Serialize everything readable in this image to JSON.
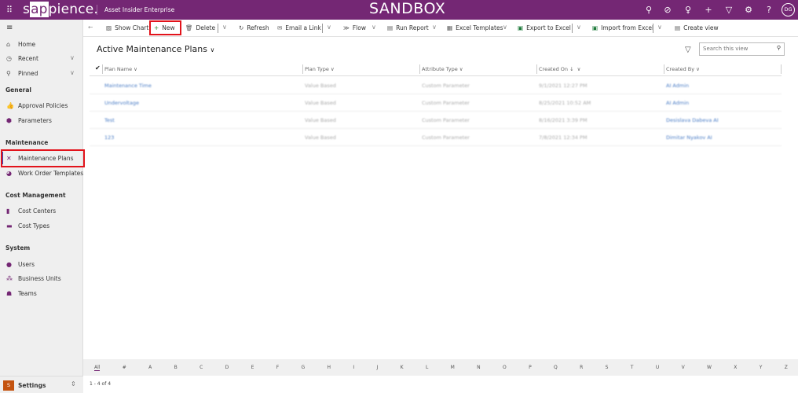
{
  "header": {
    "logo": "sappience.",
    "logo_pre": "s",
    "logo_mid": "ap",
    "logo_post": "pience.",
    "app_name": "Asset Insider Enterprise",
    "environment": "SANDBOX",
    "avatar": "DG",
    "color": "#742774"
  },
  "toolbar": {
    "show_chart": "Show Chart",
    "new": "New",
    "delete": "Delete",
    "refresh": "Refresh",
    "email_link": "Email a Link",
    "flow": "Flow",
    "run_report": "Run Report",
    "excel_templates": "Excel Templates",
    "export_excel": "Export to Excel",
    "import_excel": "Import from Excel",
    "create_view": "Create view"
  },
  "sidebar": {
    "home": "Home",
    "recent": "Recent",
    "pinned": "Pinned",
    "groups": [
      {
        "title": "General",
        "items": [
          "Approval Policies",
          "Parameters"
        ]
      },
      {
        "title": "Maintenance",
        "items": [
          "Maintenance Plans",
          "Work Order Templates"
        ]
      },
      {
        "title": "Cost Management",
        "items": [
          "Cost Centers",
          "Cost Types"
        ]
      },
      {
        "title": "System",
        "items": [
          "Users",
          "Business Units",
          "Teams"
        ]
      }
    ],
    "selected": "Maintenance Plans",
    "settings": "Settings",
    "settings_initial": "S"
  },
  "view": {
    "title": "Active Maintenance Plans",
    "search_placeholder": "Search this view"
  },
  "grid": {
    "columns": [
      "Plan Name",
      "Plan Type",
      "Attribute Type",
      "Created On",
      "Created By"
    ],
    "rows": [
      [
        "Maintenance Time",
        "Value Based",
        "Custom Parameter",
        "9/1/2021 12:27 PM",
        "AI Admin"
      ],
      [
        "Undervoltage",
        "Value Based",
        "Custom Parameter",
        "8/25/2021 10:52 AM",
        "AI Admin"
      ],
      [
        "Test",
        "Value Based",
        "Custom Parameter",
        "8/16/2021 3:39 PM",
        "Desislava Dabeva AI"
      ],
      [
        "123",
        "Value Based",
        "Custom Parameter",
        "7/8/2021 12:34 PM",
        "Dimitar Nyakov AI"
      ]
    ]
  },
  "alphabet": [
    "All",
    "#",
    "A",
    "B",
    "C",
    "D",
    "E",
    "F",
    "G",
    "H",
    "I",
    "J",
    "K",
    "L",
    "M",
    "N",
    "O",
    "P",
    "Q",
    "R",
    "S",
    "T",
    "U",
    "V",
    "W",
    "X",
    "Y",
    "Z"
  ],
  "footer": {
    "count": "1 - 4 of 4"
  }
}
